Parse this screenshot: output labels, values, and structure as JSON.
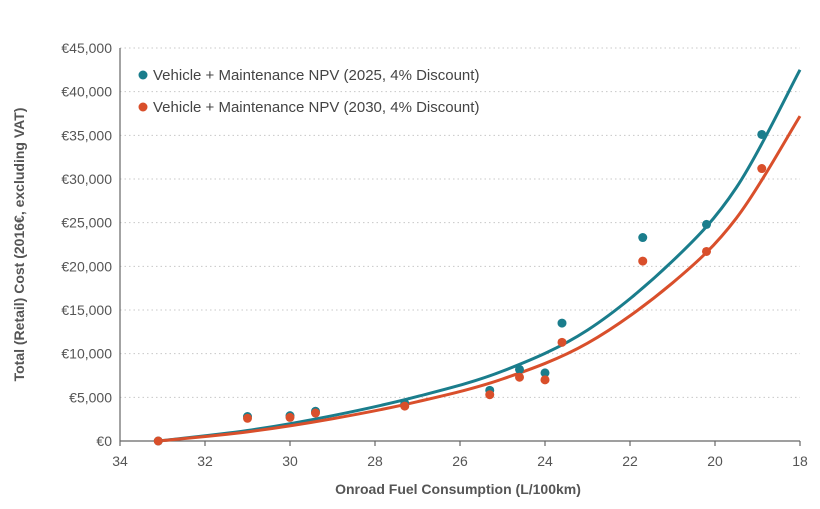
{
  "chart_data": {
    "type": "scatter",
    "xlabel": "Onroad Fuel Consumption (L/100km)",
    "ylabel": "Total (Retail) Cost (2016€, excluding VAT)",
    "x_reversed": true,
    "xlim": [
      34,
      18
    ],
    "ylim": [
      0,
      45000
    ],
    "x_ticks": [
      "34",
      "32",
      "30",
      "28",
      "26",
      "24",
      "22",
      "20",
      "18"
    ],
    "x_tick_values": [
      34,
      32,
      30,
      28,
      26,
      24,
      22,
      20,
      18
    ],
    "y_ticks": [
      "€0",
      "€5,000",
      "€10,000",
      "€15,000",
      "€20,000",
      "€25,000",
      "€30,000",
      "€35,000",
      "€40,000",
      "€45,000"
    ],
    "y_tick_values": [
      0,
      5000,
      10000,
      15000,
      20000,
      25000,
      30000,
      35000,
      40000,
      45000
    ],
    "grid": true,
    "legend_position": "top-left",
    "series": [
      {
        "name": "Vehicle + Maintenance NPV (2025, 4% Discount)",
        "color": "#1a7d8c",
        "points": [
          {
            "x": 33.1,
            "y": 0
          },
          {
            "x": 31.0,
            "y": 2800
          },
          {
            "x": 30.0,
            "y": 2900
          },
          {
            "x": 29.4,
            "y": 3400
          },
          {
            "x": 27.3,
            "y": 4300
          },
          {
            "x": 25.3,
            "y": 5800
          },
          {
            "x": 24.6,
            "y": 8200
          },
          {
            "x": 24.0,
            "y": 7800
          },
          {
            "x": 23.6,
            "y": 13500
          },
          {
            "x": 21.7,
            "y": 23300
          },
          {
            "x": 20.2,
            "y": 24800
          },
          {
            "x": 18.9,
            "y": 35100
          }
        ],
        "trend": [
          {
            "x": 33.1,
            "y": 0
          },
          {
            "x": 31.0,
            "y": 1200
          },
          {
            "x": 29.0,
            "y": 2900
          },
          {
            "x": 27.0,
            "y": 5100
          },
          {
            "x": 25.0,
            "y": 8000
          },
          {
            "x": 23.0,
            "y": 12700
          },
          {
            "x": 21.0,
            "y": 20600
          },
          {
            "x": 19.5,
            "y": 29000
          },
          {
            "x": 18.0,
            "y": 42500
          }
        ]
      },
      {
        "name": "Vehicle + Maintenance NPV (2030, 4% Discount)",
        "color": "#d94f2b",
        "points": [
          {
            "x": 33.1,
            "y": 0
          },
          {
            "x": 31.0,
            "y": 2600
          },
          {
            "x": 30.0,
            "y": 2700
          },
          {
            "x": 29.4,
            "y": 3200
          },
          {
            "x": 27.3,
            "y": 4000
          },
          {
            "x": 25.3,
            "y": 5300
          },
          {
            "x": 24.6,
            "y": 7300
          },
          {
            "x": 24.0,
            "y": 7000
          },
          {
            "x": 23.6,
            "y": 11300
          },
          {
            "x": 21.7,
            "y": 20600
          },
          {
            "x": 20.2,
            "y": 21700
          },
          {
            "x": 18.9,
            "y": 31200
          }
        ],
        "trend": [
          {
            "x": 33.1,
            "y": 0
          },
          {
            "x": 31.0,
            "y": 1050
          },
          {
            "x": 29.0,
            "y": 2550
          },
          {
            "x": 27.0,
            "y": 4500
          },
          {
            "x": 25.0,
            "y": 7100
          },
          {
            "x": 23.0,
            "y": 11200
          },
          {
            "x": 21.0,
            "y": 18100
          },
          {
            "x": 19.5,
            "y": 25500
          },
          {
            "x": 18.0,
            "y": 37200
          }
        ]
      }
    ]
  }
}
